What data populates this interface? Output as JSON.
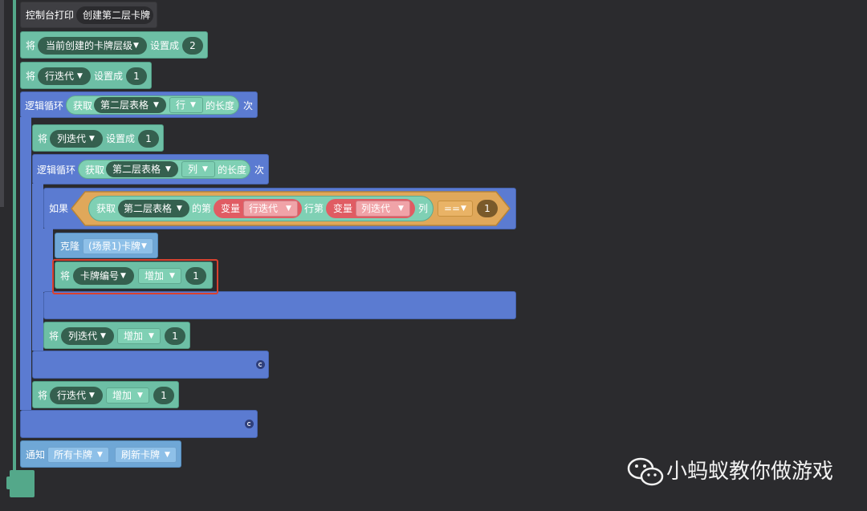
{
  "print": {
    "label": "控制台打印",
    "value": "创建第二层卡牌"
  },
  "set_layer": {
    "prefix": "将",
    "var": "当前创建的卡牌层级",
    "action": "设置成",
    "value": "2"
  },
  "set_row": {
    "prefix": "将",
    "var": "行迭代",
    "action": "设置成",
    "value": "1"
  },
  "loop_outer": {
    "label": "逻辑循环",
    "get": "获取",
    "table": "第二层表格",
    "dim": "行",
    "suffix": "的长度",
    "end": "次"
  },
  "set_col": {
    "prefix": "将",
    "var": "列迭代",
    "action": "设置成",
    "value": "1"
  },
  "loop_inner": {
    "label": "逻辑循环",
    "get": "获取",
    "table": "第二层表格",
    "dim": "列",
    "suffix": "的长度",
    "end": "次"
  },
  "if_block": {
    "label": "如果",
    "get": "获取",
    "table": "第二层表格",
    "di": "的第",
    "var1_label": "变量",
    "var1": "行迭代",
    "row_text": "行第",
    "var2_label": "变量",
    "var2": "列迭代",
    "col_text": "列",
    "op": "==",
    "value": "1"
  },
  "clone": {
    "label": "克隆",
    "target": "(场景1)卡牌"
  },
  "inc_card": {
    "prefix": "将",
    "var": "卡牌编号",
    "action": "增加",
    "value": "1"
  },
  "inc_col": {
    "prefix": "将",
    "var": "列迭代",
    "action": "增加",
    "value": "1"
  },
  "inc_row": {
    "prefix": "将",
    "var": "行迭代",
    "action": "增加",
    "value": "1"
  },
  "notify": {
    "label": "通知",
    "target": "所有卡牌",
    "event": "刷新卡牌"
  },
  "watermark": {
    "text": "小蚂蚁教你做游戏"
  },
  "colors": {
    "green": "#6dbfa5",
    "blue": "#5b7bd1",
    "light_blue": "#6fa7d6",
    "highlight": "#d9412f"
  }
}
